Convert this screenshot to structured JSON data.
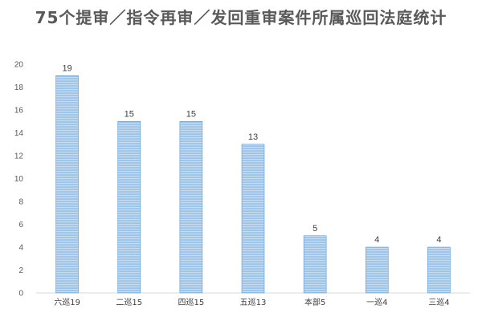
{
  "colors": {
    "bar_fill": "#9dc3e6",
    "bar_stripe": "#bdd7ee",
    "bar_edge": "#5b9bd5",
    "axis": "#d9d9d9",
    "text": "#595959"
  },
  "chart_data": {
    "type": "bar",
    "title": "75个提审／指令再审／发回重审案件所属巡回法庭统计",
    "categories": [
      "六巡19",
      "二巡15",
      "四巡15",
      "五巡13",
      "本部5",
      "一巡4",
      "三巡4"
    ],
    "values": [
      19,
      15,
      15,
      13,
      5,
      4,
      4
    ],
    "data_labels": [
      "19",
      "15",
      "15",
      "13",
      "5",
      "4",
      "4"
    ],
    "ylim": [
      0,
      20
    ],
    "yticks": [
      0,
      2,
      4,
      6,
      8,
      10,
      12,
      14,
      16,
      18,
      20
    ],
    "grid": false,
    "legend": "none"
  }
}
